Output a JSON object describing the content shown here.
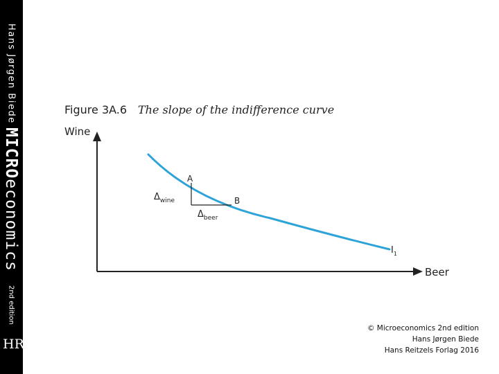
{
  "sidebar": {
    "author": "Hans Jørgen Biede",
    "title_bold": "MICRO",
    "title_rest": "economics",
    "edition": "2nd edition",
    "logo": "HR"
  },
  "figure": {
    "number": "Figure 3A.6",
    "title": "The slope of the indifference curve"
  },
  "diagram": {
    "y_axis_label": "Wine",
    "x_axis_label": "Beer",
    "curve_label_main": "I",
    "curve_label_sub": "1",
    "point_a_label": "A",
    "point_b_label": "B",
    "delta_symbol": "Δ",
    "delta_wine_sub": "wine",
    "delta_beer_sub": "beer",
    "curve_color": "#2da3d8"
  },
  "copyright": {
    "line1": "© Microeconomics 2nd edition",
    "line2": "Hans Jørgen Biede",
    "line3": "Hans Reitzels Forlag 2016"
  }
}
